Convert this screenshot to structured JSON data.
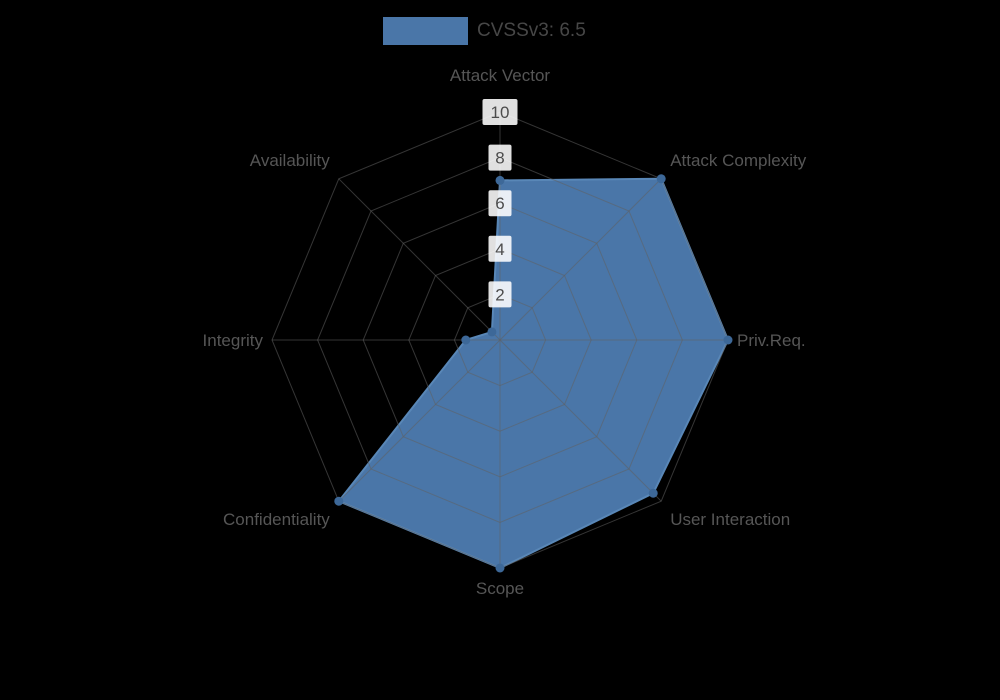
{
  "legend": {
    "label": "CVSSv3: 6.5",
    "swatch_color": "#4a76a8"
  },
  "chart_data": {
    "type": "radar",
    "title": "CVSSv3: 6.5",
    "categories": [
      "Attack Vector",
      "Attack Complexity",
      "Priv.Req.",
      "User Interaction",
      "Scope",
      "Confidentiality",
      "Integrity",
      "Availability"
    ],
    "series": [
      {
        "name": "CVSSv3: 6.5",
        "values": [
          7,
          10,
          10,
          9.5,
          10,
          10,
          1.5,
          0.5
        ]
      }
    ],
    "ticks": [
      2,
      4,
      6,
      8,
      10
    ],
    "ylim": [
      0,
      10
    ],
    "grid": true,
    "legend_position": "top-center"
  },
  "colors": {
    "background": "#000000",
    "series_fill": "#4a76a8",
    "series_stroke": "#5987b7",
    "dot": "#3d6898",
    "grid": "#606060",
    "axis_label": "#565656",
    "tick_text": "#4c4c4c",
    "tick_box": "rgba(255,255,255,0.88)",
    "legend_text": "#474747"
  }
}
